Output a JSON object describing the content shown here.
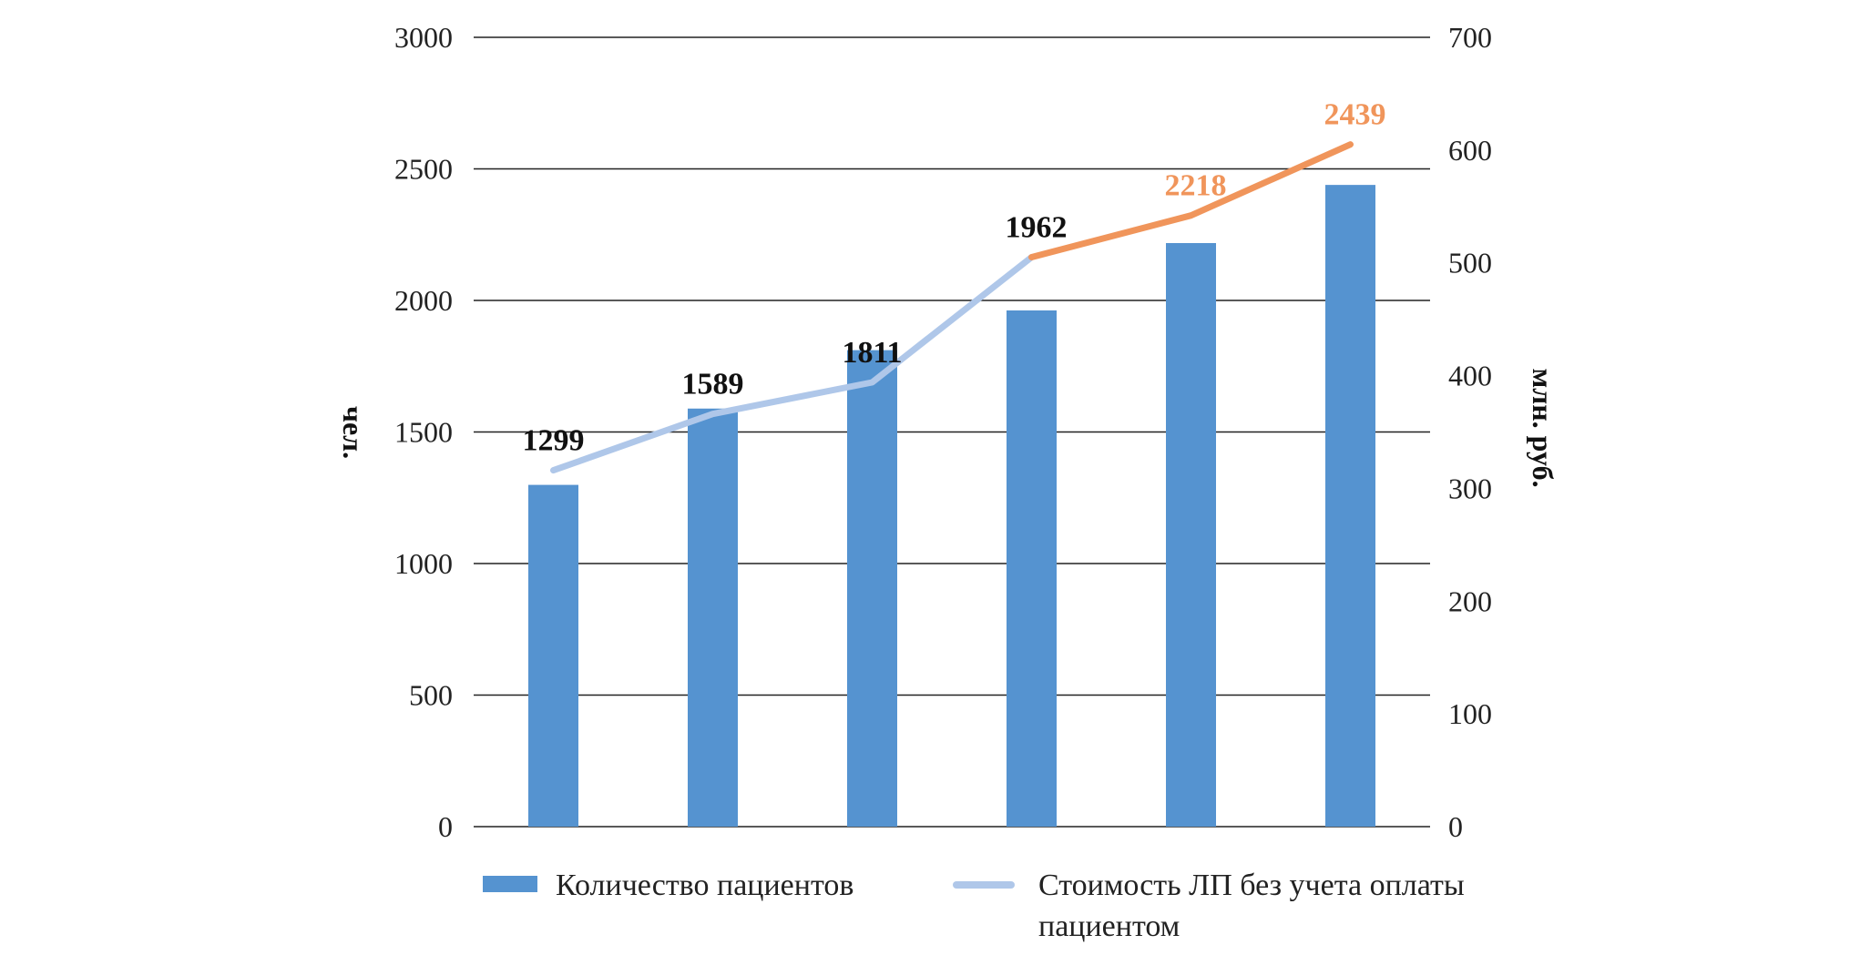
{
  "chart_data": {
    "type": "bar",
    "title": "",
    "categories": [
      "",
      "",
      "",
      "",
      "",
      ""
    ],
    "ylabel_left": "чел.",
    "ylabel_right": "млн. руб.",
    "ylim_left": [
      0,
      3000
    ],
    "ylim_right": [
      0,
      700
    ],
    "yticks_left": [
      "0",
      "500",
      "1000",
      "1500",
      "2000",
      "2500",
      "3000"
    ],
    "yticks_right": [
      "0",
      "100",
      "200",
      "300",
      "400",
      "500",
      "600",
      "700"
    ],
    "grid": true,
    "legend_position": "bottom",
    "series": [
      {
        "name": "Количество пациентов",
        "type": "bar",
        "axis": "left",
        "color": "#5593D0",
        "values": [
          1299,
          1589,
          1811,
          1962,
          2218,
          2439
        ],
        "labels": [
          "1299",
          "1589",
          "1811",
          "1962",
          "2218",
          "2439"
        ]
      },
      {
        "name": "Стоимость ЛП без учета оплаты пациентом",
        "type": "line",
        "axis": "right",
        "color": "#AFC7E9",
        "highlight_color": "#F0955B",
        "highlight_from_index": 3,
        "values": [
          316,
          366,
          394,
          505,
          542,
          605
        ]
      }
    ],
    "label_colors": [
      "#111111",
      "#111111",
      "#111111",
      "#111111",
      "#F0955B",
      "#F0955B"
    ],
    "legend": {
      "bar_label": "Количество пациентов",
      "line_label_1": "Стоимость ЛП без учета оплаты",
      "line_label_2": "пациентом"
    }
  }
}
